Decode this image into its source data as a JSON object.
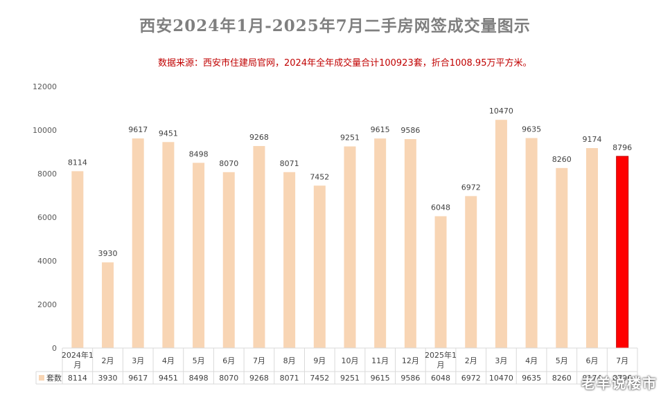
{
  "chart_data": {
    "type": "bar",
    "title": "西安2024年1月-2025年7月二手房网签成交量图示",
    "subtitle": "数据来源：西安市住建局官网，2024年全年成交量合计100923套，折合1008.95万平方米。",
    "categories": [
      "2024年1月",
      "2月",
      "3月",
      "4月",
      "5月",
      "6月",
      "7月",
      "8月",
      "9月",
      "10月",
      "11月",
      "12月",
      "2025年1月",
      "2月",
      "3月",
      "4月",
      "5月",
      "6月",
      "7月"
    ],
    "series": [
      {
        "name": "套数",
        "values": [
          8114,
          3930,
          9617,
          9451,
          8498,
          8070,
          9268,
          8071,
          7452,
          9251,
          9615,
          9586,
          6048,
          6972,
          10470,
          9635,
          8260,
          9174,
          8796
        ]
      }
    ],
    "ylim": [
      0,
      12000
    ],
    "yticks": [
      0,
      2000,
      4000,
      6000,
      8000,
      10000,
      12000
    ],
    "grid": false,
    "legend": "data-table",
    "colors": {
      "bar": "#f8d5b4",
      "highlight": "#ff0000",
      "highlight_stroke": "#c00000"
    },
    "highlight_index": 18
  },
  "watermark": "老羊说楼市"
}
